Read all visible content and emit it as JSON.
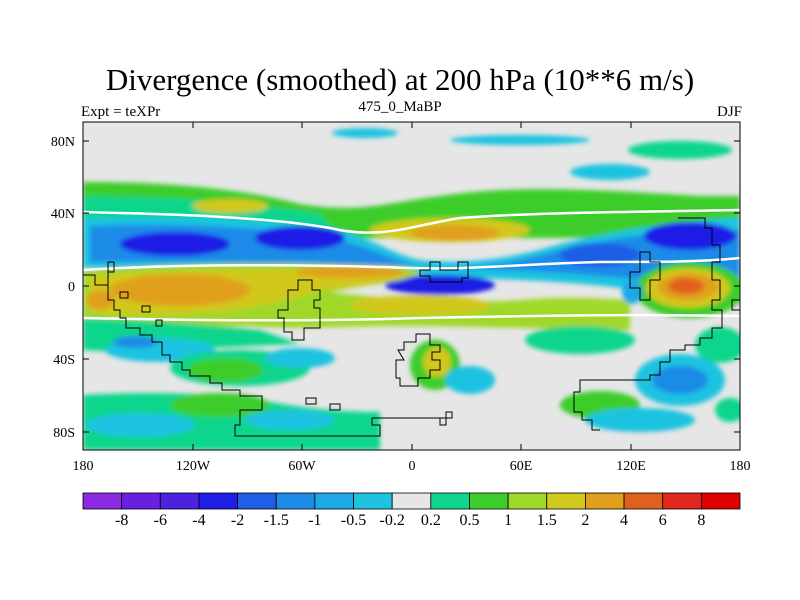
{
  "title": "Divergence (smoothed) at 200 hPa (10**6 m/s)",
  "left_label": "Expt = teXPr",
  "center_label": "475_0_MaBP",
  "right_label": "DJF",
  "map": {
    "lon_ticks": [
      "180",
      "120W",
      "60W",
      "0",
      "60E",
      "120E",
      "180"
    ],
    "lat_ticks": [
      "80N",
      "40N",
      "0",
      "40S",
      "80S"
    ],
    "lon_range": [
      -180,
      180
    ],
    "lat_range": [
      -90,
      90
    ],
    "background_color": "#e6e6e6"
  },
  "colorbar": {
    "labels": [
      "-8",
      "-6",
      "-4",
      "-2",
      "-1.5",
      "-1",
      "-0.5",
      "-0.2",
      "0.2",
      "0.5",
      "1",
      "1.5",
      "2",
      "4",
      "6",
      "8"
    ],
    "colors": [
      "#8a2be2",
      "#6a1ee0",
      "#4b22dd",
      "#1e1ee6",
      "#1f5fe6",
      "#1e8be8",
      "#1fa8e6",
      "#1ec3e0",
      "#e6e6e6",
      "#10d68c",
      "#3ccd2a",
      "#a0d82a",
      "#d2c81e",
      "#e0a01e",
      "#e0601e",
      "#e0281e",
      "#e00000"
    ]
  }
}
